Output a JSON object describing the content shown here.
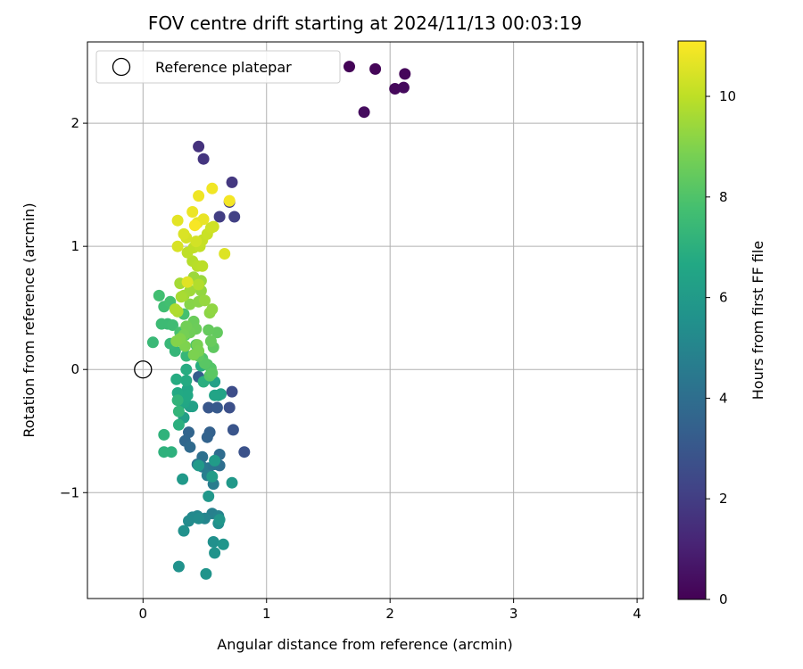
{
  "chart_data": {
    "type": "scatter",
    "title": "FOV centre drift starting at 2024/11/13 00:03:19",
    "xlabel": "Angular distance from reference (arcmin)",
    "ylabel": "Rotation from reference (arcmin)",
    "xlim": [
      -0.45,
      4.05
    ],
    "ylim": [
      -1.86,
      2.66
    ],
    "xticks": [
      0,
      1,
      2,
      3,
      4
    ],
    "yticks": [
      -1,
      0,
      1,
      2
    ],
    "xtick_labels": [
      "0",
      "1",
      "2",
      "3",
      "4"
    ],
    "ytick_labels": [
      "−1",
      "0",
      "1",
      "2"
    ],
    "grid": true,
    "legend": {
      "position": "top-left",
      "entries": [
        "Reference platepar"
      ]
    },
    "colorbar": {
      "label": "Hours from first FF file",
      "range": [
        0,
        11.1
      ],
      "ticks": [
        0,
        2,
        4,
        6,
        8,
        10
      ],
      "tick_labels": [
        "0",
        "2",
        "4",
        "6",
        "8",
        "10"
      ],
      "colormap": "viridis"
    },
    "reference_point": {
      "x": 0,
      "y": 0
    },
    "points": [
      [
        1.67,
        2.46,
        0.1
      ],
      [
        1.88,
        2.44,
        0.15
      ],
      [
        2.12,
        2.4,
        0.2
      ],
      [
        2.04,
        2.28,
        0.25
      ],
      [
        2.11,
        2.29,
        0.3
      ],
      [
        1.79,
        2.09,
        0.35
      ],
      [
        0.45,
        1.81,
        1.6
      ],
      [
        0.49,
        1.71,
        1.7
      ],
      [
        0.72,
        1.52,
        1.8
      ],
      [
        0.7,
        1.36,
        1.9
      ],
      [
        0.62,
        1.24,
        2.0
      ],
      [
        0.74,
        1.24,
        2.1
      ],
      [
        0.72,
        -0.18,
        2.6
      ],
      [
        0.7,
        -0.31,
        2.7
      ],
      [
        0.82,
        -0.67,
        2.8
      ],
      [
        0.73,
        -0.49,
        2.9
      ],
      [
        0.53,
        -0.31,
        3.0
      ],
      [
        0.6,
        -0.31,
        3.1
      ],
      [
        0.45,
        -0.06,
        3.3
      ],
      [
        0.54,
        -0.51,
        3.4
      ],
      [
        0.52,
        -0.55,
        3.5
      ],
      [
        0.37,
        -0.51,
        3.6
      ],
      [
        0.34,
        -0.58,
        3.7
      ],
      [
        0.38,
        -0.63,
        3.8
      ],
      [
        0.62,
        -0.69,
        3.9
      ],
      [
        0.62,
        -0.78,
        4.0
      ],
      [
        0.48,
        -0.71,
        4.1
      ],
      [
        0.58,
        -0.77,
        4.2
      ],
      [
        0.53,
        -0.8,
        4.3
      ],
      [
        0.44,
        -0.77,
        4.4
      ],
      [
        0.48,
        -0.79,
        4.5
      ],
      [
        0.57,
        -0.93,
        4.6
      ],
      [
        0.52,
        -0.86,
        4.7
      ],
      [
        0.56,
        -1.17,
        4.8
      ],
      [
        0.61,
        -1.19,
        4.9
      ],
      [
        0.5,
        -1.21,
        5.0
      ],
      [
        0.44,
        -1.19,
        5.1
      ],
      [
        0.4,
        -1.2,
        5.2
      ],
      [
        0.37,
        -1.23,
        5.3
      ],
      [
        0.45,
        -1.21,
        5.35
      ],
      [
        0.61,
        -1.25,
        5.4
      ],
      [
        0.57,
        -1.4,
        5.5
      ],
      [
        0.33,
        -1.31,
        5.55
      ],
      [
        0.29,
        -1.6,
        5.6
      ],
      [
        0.58,
        -1.49,
        5.65
      ],
      [
        0.51,
        -1.66,
        5.7
      ],
      [
        0.65,
        -1.42,
        5.75
      ],
      [
        0.62,
        -1.22,
        5.8
      ],
      [
        0.53,
        -1.03,
        5.85
      ],
      [
        0.72,
        -0.92,
        5.9
      ],
      [
        0.32,
        -0.89,
        5.95
      ],
      [
        0.45,
        -0.78,
        6.0
      ],
      [
        0.58,
        -0.74,
        6.05
      ],
      [
        0.56,
        -0.87,
        6.1
      ],
      [
        0.38,
        -0.3,
        6.15
      ],
      [
        0.33,
        -0.39,
        6.2
      ],
      [
        0.4,
        -0.3,
        6.25
      ],
      [
        0.58,
        -0.1,
        6.3
      ],
      [
        0.61,
        -0.21,
        6.35
      ],
      [
        0.63,
        -0.2,
        6.4
      ],
      [
        0.58,
        -0.21,
        6.45
      ],
      [
        0.36,
        -0.16,
        6.5
      ],
      [
        0.33,
        -0.27,
        6.55
      ],
      [
        0.34,
        -0.24,
        6.6
      ],
      [
        0.36,
        -0.21,
        6.65
      ],
      [
        0.28,
        -0.19,
        6.7
      ],
      [
        0.35,
        -0.09,
        6.75
      ],
      [
        0.27,
        -0.08,
        6.8
      ],
      [
        0.35,
        0.0,
        6.85
      ],
      [
        0.47,
        0.03,
        6.9
      ],
      [
        0.49,
        -0.1,
        6.95
      ],
      [
        0.29,
        -0.45,
        7.0
      ],
      [
        0.23,
        -0.67,
        7.05
      ],
      [
        0.17,
        -0.67,
        7.1
      ],
      [
        0.17,
        -0.53,
        7.15
      ],
      [
        0.28,
        -0.25,
        7.2
      ],
      [
        0.29,
        -0.34,
        7.25
      ],
      [
        0.26,
        0.15,
        7.3
      ],
      [
        0.35,
        0.11,
        7.35
      ],
      [
        0.22,
        0.21,
        7.4
      ],
      [
        0.08,
        0.22,
        7.45
      ],
      [
        0.2,
        0.37,
        7.5
      ],
      [
        0.15,
        0.37,
        7.55
      ],
      [
        0.24,
        0.36,
        7.6
      ],
      [
        0.17,
        0.51,
        7.65
      ],
      [
        0.13,
        0.6,
        7.7
      ],
      [
        0.22,
        0.55,
        7.75
      ],
      [
        0.33,
        0.45,
        7.8
      ],
      [
        0.3,
        0.3,
        7.85
      ],
      [
        0.34,
        0.28,
        7.9
      ],
      [
        0.43,
        0.2,
        7.95
      ],
      [
        0.48,
        0.09,
        8.0
      ],
      [
        0.52,
        0.04,
        8.05
      ],
      [
        0.55,
        0.01,
        8.1
      ],
      [
        0.54,
        -0.05,
        8.15
      ],
      [
        0.5,
        0.05,
        8.2
      ],
      [
        0.56,
        -0.03,
        8.25
      ],
      [
        0.45,
        0.11,
        8.3
      ],
      [
        0.57,
        0.18,
        8.35
      ],
      [
        0.6,
        0.3,
        8.4
      ],
      [
        0.53,
        0.32,
        8.45
      ],
      [
        0.55,
        0.23,
        8.5
      ],
      [
        0.41,
        0.39,
        8.55
      ],
      [
        0.43,
        0.33,
        8.6
      ],
      [
        0.38,
        0.3,
        8.65
      ],
      [
        0.35,
        0.35,
        8.7
      ],
      [
        0.33,
        0.28,
        8.75
      ],
      [
        0.44,
        0.2,
        8.8
      ],
      [
        0.45,
        0.15,
        8.85
      ],
      [
        0.41,
        0.12,
        8.9
      ],
      [
        0.34,
        0.19,
        8.95
      ],
      [
        0.3,
        0.25,
        9.0
      ],
      [
        0.27,
        0.23,
        9.05
      ],
      [
        0.38,
        0.53,
        9.1
      ],
      [
        0.45,
        0.55,
        9.15
      ],
      [
        0.54,
        0.46,
        9.2
      ],
      [
        0.56,
        0.49,
        9.25
      ],
      [
        0.47,
        0.64,
        9.3
      ],
      [
        0.5,
        0.56,
        9.35
      ],
      [
        0.47,
        0.72,
        9.4
      ],
      [
        0.41,
        0.75,
        9.45
      ],
      [
        0.38,
        0.64,
        9.5
      ],
      [
        0.33,
        0.6,
        9.55
      ],
      [
        0.3,
        0.7,
        9.6
      ],
      [
        0.31,
        0.59,
        9.65
      ],
      [
        0.28,
        0.47,
        9.7
      ],
      [
        0.26,
        0.49,
        9.75
      ],
      [
        0.45,
        0.69,
        9.8
      ],
      [
        0.4,
        0.88,
        9.85
      ],
      [
        0.44,
        0.84,
        9.9
      ],
      [
        0.48,
        0.84,
        9.95
      ],
      [
        0.36,
        0.95,
        10.0
      ],
      [
        0.41,
        0.99,
        10.05
      ],
      [
        0.46,
        1.0,
        10.1
      ],
      [
        0.48,
        1.05,
        10.15
      ],
      [
        0.52,
        1.1,
        10.2
      ],
      [
        0.55,
        1.15,
        10.25
      ],
      [
        0.57,
        1.16,
        10.3
      ],
      [
        0.43,
        1.04,
        10.35
      ],
      [
        0.35,
        1.07,
        10.4
      ],
      [
        0.28,
        1.0,
        10.45
      ],
      [
        0.33,
        1.1,
        10.5
      ],
      [
        0.66,
        0.94,
        10.55
      ],
      [
        0.36,
        0.71,
        10.6
      ],
      [
        0.28,
        1.21,
        10.65
      ],
      [
        0.44,
        1.19,
        10.7
      ],
      [
        0.49,
        1.22,
        10.75
      ],
      [
        0.4,
        1.28,
        10.8
      ],
      [
        0.45,
        1.41,
        10.85
      ],
      [
        0.56,
        1.47,
        10.9
      ],
      [
        0.7,
        1.37,
        10.95
      ],
      [
        0.42,
        1.17,
        11.0
      ]
    ]
  }
}
